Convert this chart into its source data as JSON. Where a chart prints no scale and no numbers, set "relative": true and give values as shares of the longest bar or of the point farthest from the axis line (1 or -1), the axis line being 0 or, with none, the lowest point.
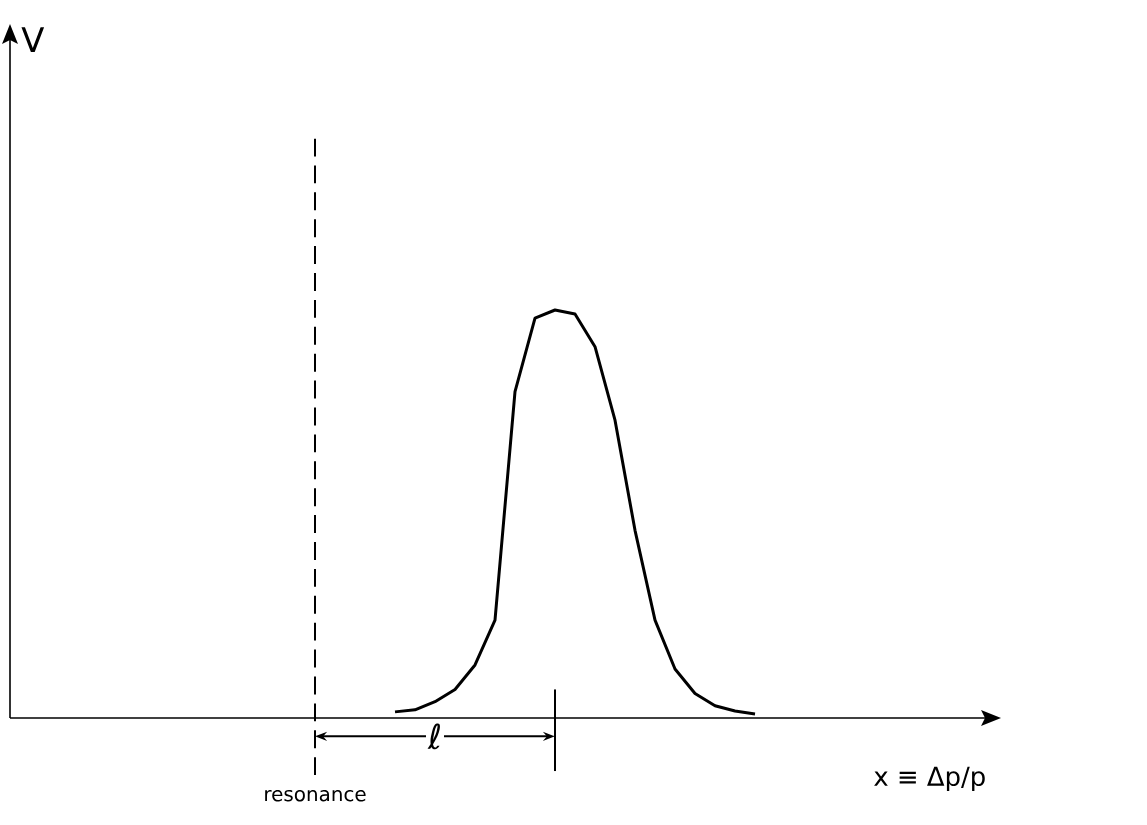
{
  "chart_data": {
    "type": "line",
    "relative": true,
    "xlabel": "x ≡ Δp/p",
    "categories": [
      null,
      null,
      null,
      null,
      null,
      null,
      null,
      null,
      null,
      null,
      null,
      null,
      null,
      null,
      null,
      null,
      null,
      null,
      null,
      null,
      null,
      null,
      null,
      null,
      null,
      null,
      null,
      null,
      null,
      null,
      null,
      null,
      null,
      null,
      null,
      null,
      null,
      null,
      null,
      null,
      null,
      null,
      null,
      null,
      null,
      null,
      null,
      null,
      null
    ],
    "series": [
      {
        "color": "#000000",
        "values": [
          null,
          null,
          null,
          null,
          null,
          null,
          null,
          null,
          null,
          null,
          null,
          null,
          null,
          null,
          null,
          null,
          null,
          null,
          null,
          0.015,
          0.02,
          0.04,
          0.07,
          0.13,
          0.24,
          0.8,
          0.98,
          1.0,
          0.99,
          0.91,
          0.73,
          0.46,
          0.24,
          0.12,
          0.06,
          0.03,
          0.017,
          0.01,
          null,
          null,
          null,
          null,
          null,
          null,
          null,
          null,
          null,
          null,
          null
        ]
      }
    ],
    "annotations": [
      "resonance",
      "ℓ",
      "V"
    ]
  }
}
